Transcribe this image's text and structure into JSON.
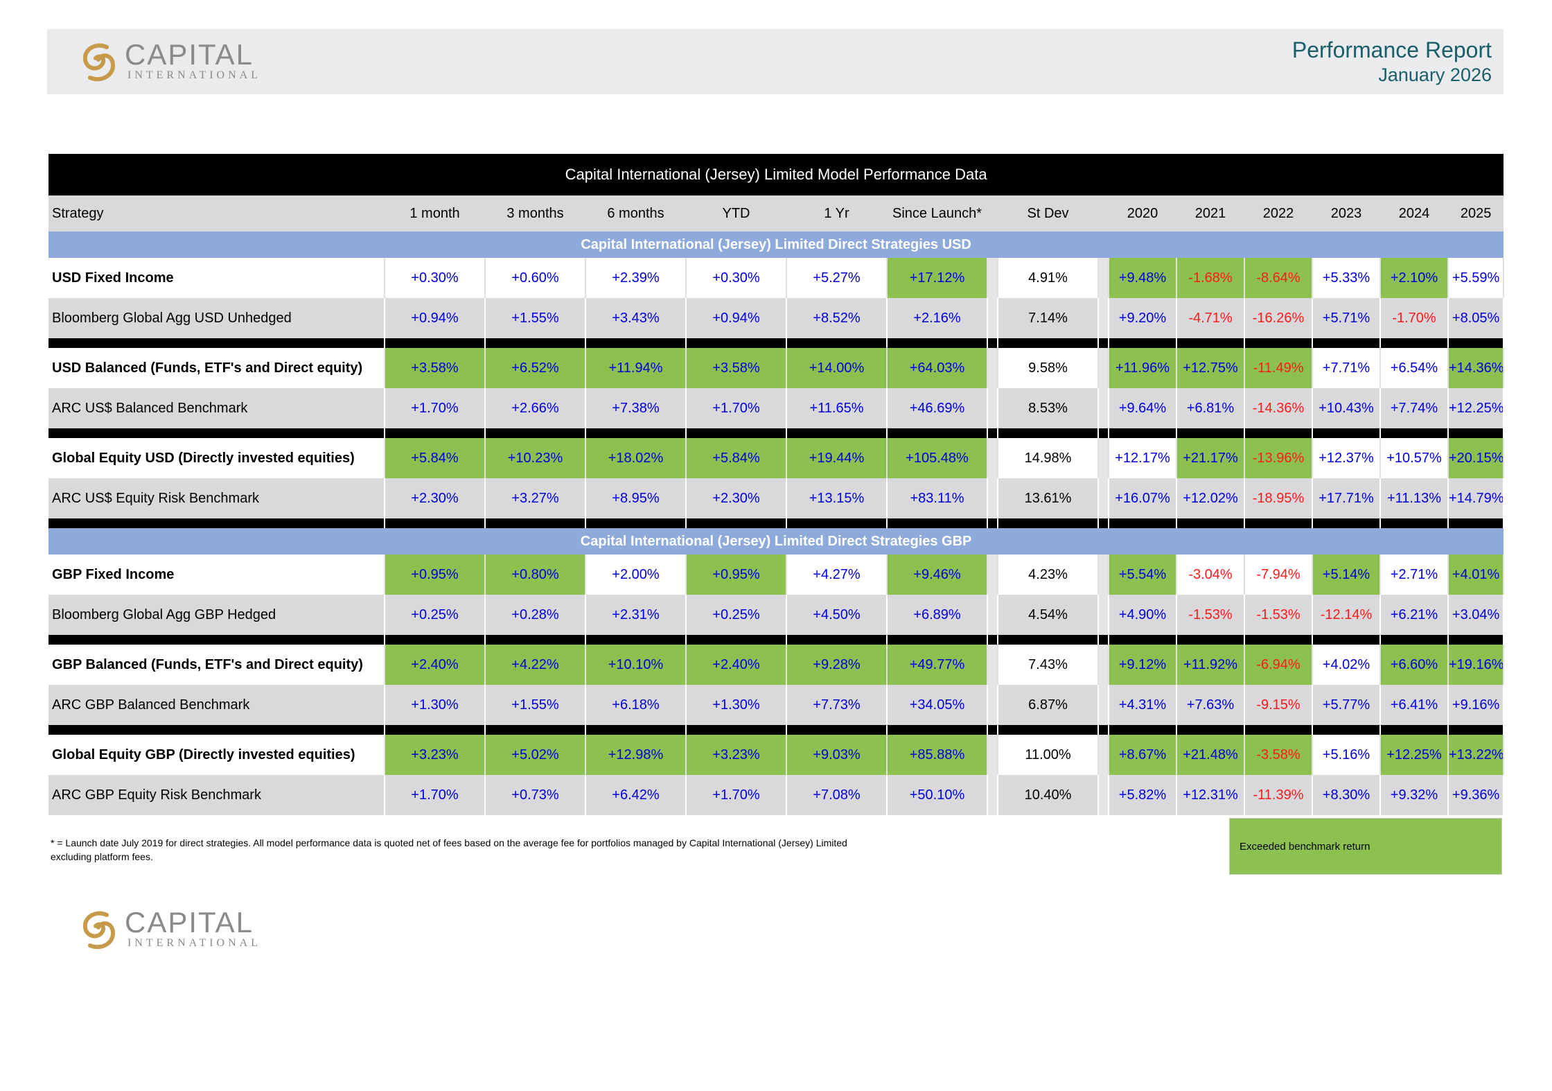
{
  "header": {
    "logo_word": "CAPITAL",
    "logo_sub": "INTERNATIONAL",
    "report_title": "Performance Report",
    "report_date": "January 2026"
  },
  "table": {
    "title": "Capital International (Jersey) Limited Model Performance Data",
    "columns": [
      "Strategy",
      "1 month",
      "3 months",
      "6 months",
      "YTD",
      "1 Yr",
      "Since Launch*",
      "St Dev",
      "2020",
      "2021",
      "2022",
      "2023",
      "2024",
      "2025"
    ],
    "sections": [
      {
        "title": "Capital International (Jersey) Limited  Direct Strategies USD",
        "groups": [
          {
            "strategy": {
              "name": "USD Fixed Income",
              "values": [
                "+0.30%",
                "+0.60%",
                "+2.39%",
                "+0.30%",
                "+5.27%",
                "+17.12%"
              ],
              "stdev": "4.91%",
              "years": [
                "+9.48%",
                "-1.68%",
                "-8.64%",
                "+5.33%",
                "+2.10%",
                "+5.59%"
              ]
            },
            "benchmark": {
              "name": "Bloomberg Global Agg USD Unhedged",
              "values": [
                "+0.94%",
                "+1.55%",
                "+3.43%",
                "+0.94%",
                "+8.52%",
                "+2.16%"
              ],
              "stdev": "7.14%",
              "years": [
                "+9.20%",
                "-4.71%",
                "-16.26%",
                "+5.71%",
                "-1.70%",
                "+8.05%"
              ]
            }
          },
          {
            "strategy": {
              "name": "USD Balanced (Funds, ETF's and Direct equity)",
              "values": [
                "+3.58%",
                "+6.52%",
                "+11.94%",
                "+3.58%",
                "+14.00%",
                "+64.03%"
              ],
              "stdev": "9.58%",
              "years": [
                "+11.96%",
                "+12.75%",
                "-11.49%",
                "+7.71%",
                "+6.54%",
                "+14.36%"
              ]
            },
            "benchmark": {
              "name": "ARC US$ Balanced Benchmark",
              "values": [
                "+1.70%",
                "+2.66%",
                "+7.38%",
                "+1.70%",
                "+11.65%",
                "+46.69%"
              ],
              "stdev": "8.53%",
              "years": [
                "+9.64%",
                "+6.81%",
                "-14.36%",
                "+10.43%",
                "+7.74%",
                "+12.25%"
              ]
            }
          },
          {
            "strategy": {
              "name": "Global Equity USD (Directly invested equities)",
              "values": [
                "+5.84%",
                "+10.23%",
                "+18.02%",
                "+5.84%",
                "+19.44%",
                "+105.48%"
              ],
              "stdev": "14.98%",
              "years": [
                "+12.17%",
                "+21.17%",
                "-13.96%",
                "+12.37%",
                "+10.57%",
                "+20.15%"
              ]
            },
            "benchmark": {
              "name": "ARC US$ Equity Risk Benchmark",
              "values": [
                "+2.30%",
                "+3.27%",
                "+8.95%",
                "+2.30%",
                "+13.15%",
                "+83.11%"
              ],
              "stdev": "13.61%",
              "years": [
                "+16.07%",
                "+12.02%",
                "-18.95%",
                "+17.71%",
                "+11.13%",
                "+14.79%"
              ]
            }
          }
        ]
      },
      {
        "title": "Capital International (Jersey) Limited Direct Strategies GBP",
        "groups": [
          {
            "strategy": {
              "name": "GBP Fixed Income",
              "values": [
                "+0.95%",
                "+0.80%",
                "+2.00%",
                "+0.95%",
                "+4.27%",
                "+9.46%"
              ],
              "stdev": "4.23%",
              "years": [
                "+5.54%",
                "-3.04%",
                "-7.94%",
                "+5.14%",
                "+2.71%",
                "+4.01%"
              ]
            },
            "benchmark": {
              "name": "Bloomberg Global Agg GBP Hedged",
              "values": [
                "+0.25%",
                "+0.28%",
                "+2.31%",
                "+0.25%",
                "+4.50%",
                "+6.89%"
              ],
              "stdev": "4.54%",
              "years": [
                "+4.90%",
                "-1.53%",
                "-1.53%",
                "-12.14%",
                "+6.21%",
                "+3.04%"
              ]
            }
          },
          {
            "strategy": {
              "name": "GBP Balanced (Funds, ETF's and Direct equity)",
              "values": [
                "+2.40%",
                "+4.22%",
                "+10.10%",
                "+2.40%",
                "+9.28%",
                "+49.77%"
              ],
              "stdev": "7.43%",
              "years": [
                "+9.12%",
                "+11.92%",
                "-6.94%",
                "+4.02%",
                "+6.60%",
                "+19.16%"
              ]
            },
            "benchmark": {
              "name": "ARC GBP Balanced Benchmark",
              "values": [
                "+1.30%",
                "+1.55%",
                "+6.18%",
                "+1.30%",
                "+7.73%",
                "+34.05%"
              ],
              "stdev": "6.87%",
              "years": [
                "+4.31%",
                "+7.63%",
                "-9.15%",
                "+5.77%",
                "+6.41%",
                "+9.16%"
              ]
            }
          },
          {
            "strategy": {
              "name": "Global Equity GBP (Directly invested equities)",
              "values": [
                "+3.23%",
                "+5.02%",
                "+12.98%",
                "+3.23%",
                "+9.03%",
                "+85.88%"
              ],
              "stdev": "11.00%",
              "years": [
                "+8.67%",
                "+21.48%",
                "-3.58%",
                "+5.16%",
                "+12.25%",
                "+13.22%"
              ]
            },
            "benchmark": {
              "name": "ARC GBP Equity Risk Benchmark",
              "values": [
                "+1.70%",
                "+0.73%",
                "+6.42%",
                "+1.70%",
                "+7.08%",
                "+50.10%"
              ],
              "stdev": "10.40%",
              "years": [
                "+5.82%",
                "+12.31%",
                "-11.39%",
                "+8.30%",
                "+9.32%",
                "+9.36%"
              ]
            }
          }
        ]
      }
    ]
  },
  "footnote": "* = Launch date July 2019 for direct strategies. All model performance data is quoted net of fees based on the average fee for portfolios managed by Capital International (Jersey) Limited excluding platform fees.",
  "legend": {
    "label": "Exceeded benchmark return",
    "color": "#8dc14f"
  },
  "colors": {
    "positive_text": "#0000dd",
    "negative_text": "#ff1a1a",
    "section_band": "#8eaadb",
    "brand_teal": "#1a5e6a",
    "logo_gold": "#c79a4a"
  }
}
